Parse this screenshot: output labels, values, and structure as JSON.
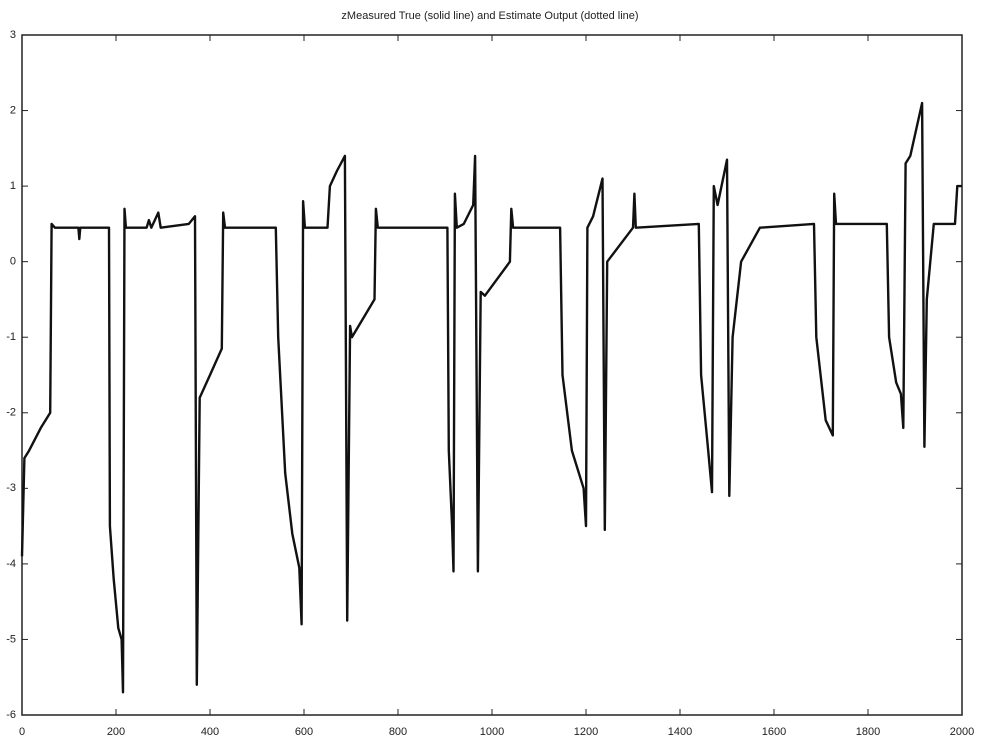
{
  "chart_data": {
    "type": "line",
    "title": "zMeasured True (solid line) and Estimate Output (dotted line)",
    "x": [
      0,
      5,
      15,
      40,
      60,
      63,
      70,
      120,
      122,
      124,
      185,
      187,
      195,
      205,
      212,
      215,
      218,
      221,
      265,
      270,
      275,
      290,
      295,
      355,
      368,
      372,
      378,
      400,
      425,
      428,
      432,
      540,
      545,
      560,
      575,
      590,
      595,
      598,
      602,
      650,
      655,
      670,
      687,
      692,
      698,
      702,
      750,
      753,
      757,
      905,
      908,
      915,
      918,
      921,
      925,
      940,
      960,
      964,
      970,
      976,
      985,
      1038,
      1041,
      1045,
      1145,
      1150,
      1170,
      1195,
      1200,
      1203,
      1215,
      1235,
      1240,
      1245,
      1300,
      1303,
      1306,
      1440,
      1445,
      1460,
      1468,
      1472,
      1480,
      1500,
      1505,
      1512,
      1530,
      1570,
      1685,
      1690,
      1710,
      1725,
      1728,
      1732,
      1840,
      1845,
      1860,
      1870,
      1875,
      1880,
      1890,
      1915,
      1920,
      1925,
      1940,
      1985,
      1990,
      2000
    ],
    "values": [
      -3.9,
      -2.6,
      -2.5,
      -2.2,
      -2.0,
      0.5,
      0.45,
      0.45,
      0.3,
      0.45,
      0.45,
      -3.5,
      -4.2,
      -4.85,
      -5.0,
      -5.7,
      0.7,
      0.45,
      0.45,
      0.55,
      0.45,
      0.65,
      0.45,
      0.5,
      0.6,
      -5.6,
      -1.8,
      -1.5,
      -1.15,
      0.65,
      0.45,
      0.45,
      -1.0,
      -2.8,
      -3.6,
      -4.05,
      -4.8,
      0.8,
      0.45,
      0.45,
      1.0,
      1.2,
      1.4,
      -4.75,
      -0.85,
      -1.0,
      -0.5,
      0.7,
      0.45,
      0.45,
      -2.5,
      -3.5,
      -4.1,
      0.9,
      0.45,
      0.5,
      0.75,
      1.4,
      -4.1,
      -0.4,
      -0.45,
      0.0,
      0.7,
      0.45,
      0.45,
      -1.5,
      -2.5,
      -3.0,
      -3.5,
      0.45,
      0.6,
      1.1,
      -3.55,
      0.0,
      0.45,
      0.9,
      0.45,
      0.5,
      -1.5,
      -2.5,
      -3.05,
      1.0,
      0.75,
      1.35,
      -3.1,
      -1.0,
      0.0,
      0.45,
      0.5,
      -1.0,
      -2.1,
      -2.3,
      0.9,
      0.5,
      0.5,
      -1.0,
      -1.6,
      -1.75,
      -2.2,
      1.3,
      1.4,
      2.1,
      -2.45,
      -0.5,
      0.5,
      0.5,
      1.0,
      1.0
    ],
    "color": "#111111",
    "xlim": [
      0,
      2000
    ],
    "xticks": [
      0,
      200,
      400,
      600,
      800,
      1000,
      1200,
      1400,
      1600,
      1800,
      2000
    ],
    "ylim": [
      -6,
      3
    ],
    "yticks": [
      -6,
      -5,
      -4,
      -3,
      -2,
      -1,
      0,
      1,
      2,
      3
    ]
  }
}
